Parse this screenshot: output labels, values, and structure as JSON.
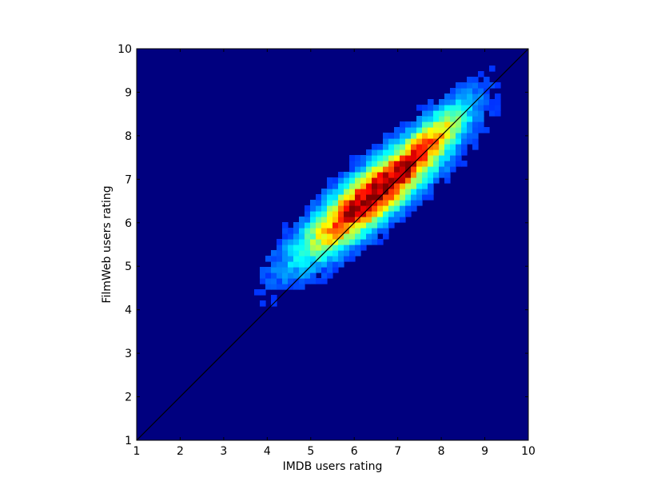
{
  "chart_data": {
    "type": "heatmap",
    "title": "",
    "xlabel": "IMDB users rating",
    "ylabel": "FilmWeb users rating",
    "xlim": [
      1,
      10
    ],
    "ylim": [
      1,
      10
    ],
    "xticks": [
      1,
      2,
      3,
      4,
      5,
      6,
      7,
      8,
      9,
      10
    ],
    "yticks": [
      1,
      2,
      3,
      4,
      5,
      6,
      7,
      8,
      9,
      10
    ],
    "grid": false,
    "legend": "none",
    "colormap": "jet",
    "background_color": "#00007f",
    "reference_line": {
      "label": "",
      "x": [
        1,
        10
      ],
      "y": [
        1,
        10
      ],
      "color": "#000000"
    },
    "density": {
      "description_of_shape": "elongated positive-correlation blob",
      "center": [
        6.5,
        6.7
      ],
      "x_spread": 1.15,
      "y_spread": 1.0,
      "correlation": 0.88,
      "peak_regions": [
        {
          "x": 6.1,
          "y": 6.4,
          "level": 0.95
        },
        {
          "x": 7.0,
          "y": 7.1,
          "level": 1.0
        },
        {
          "x": 7.4,
          "y": 7.5,
          "level": 0.85
        }
      ],
      "levels_note": ""
    }
  }
}
